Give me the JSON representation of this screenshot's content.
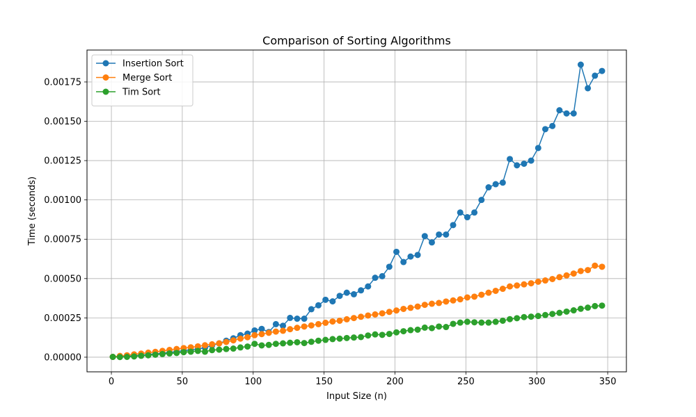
{
  "chart_data": {
    "type": "line",
    "title": "Comparison of Sorting Algorithms",
    "xlabel": "Input Size (n)",
    "ylabel": "Time (seconds)",
    "xlim": [
      -17.2,
      363.2
    ],
    "ylim": [
      -9.3e-05,
      0.001953
    ],
    "xticks": [
      0,
      50,
      100,
      150,
      200,
      250,
      300,
      350
    ],
    "xtick_labels": [
      "0",
      "50",
      "100",
      "150",
      "200",
      "250",
      "300",
      "350"
    ],
    "yticks": [
      0,
      0.00025,
      0.0005,
      0.00075,
      0.001,
      0.00125,
      0.0015,
      0.00175
    ],
    "ytick_labels": [
      "0.00000",
      "0.00025",
      "0.00050",
      "0.00075",
      "0.00100",
      "0.00125",
      "0.00150",
      "0.00175"
    ],
    "grid": true,
    "legend_position": "top-left",
    "x": [
      1,
      6,
      11,
      16,
      21,
      26,
      31,
      36,
      41,
      46,
      51,
      56,
      61,
      66,
      71,
      76,
      81,
      86,
      91,
      96,
      101,
      106,
      111,
      116,
      121,
      126,
      131,
      136,
      141,
      146,
      151,
      156,
      161,
      166,
      171,
      176,
      181,
      186,
      191,
      196,
      201,
      206,
      211,
      216,
      221,
      226,
      231,
      236,
      241,
      246,
      251,
      256,
      261,
      266,
      271,
      276,
      281,
      286,
      291,
      296,
      301,
      306,
      311,
      316,
      321,
      326,
      331,
      336,
      341,
      346
    ],
    "series": [
      {
        "name": "Insertion Sort",
        "color": "#1f77b4",
        "values": [
          2e-06,
          3e-06,
          6e-06,
          9e-06,
          1.3e-05,
          1.7e-05,
          2.1e-05,
          2.5e-05,
          3e-05,
          3.5e-05,
          4.1e-05,
          4.6e-05,
          5.3e-05,
          6e-05,
          7.5e-05,
          8.8e-05,
          0.000105,
          0.00012,
          0.00014,
          0.00015,
          0.00017,
          0.00018,
          0.00016,
          0.00021,
          0.0002,
          0.00025,
          0.000245,
          0.000245,
          0.000305,
          0.00033,
          0.000365,
          0.000355,
          0.00039,
          0.00041,
          0.0004,
          0.000425,
          0.00045,
          0.000505,
          0.000515,
          0.000575,
          0.00067,
          0.000605,
          0.00064,
          0.00065,
          0.00077,
          0.00073,
          0.00078,
          0.00078,
          0.00084,
          0.00092,
          0.00089,
          0.00092,
          0.001,
          0.00108,
          0.0011,
          0.00111,
          0.00126,
          0.00122,
          0.00123,
          0.00125,
          0.00133,
          0.00145,
          0.00147,
          0.00157,
          0.00155,
          0.00155,
          0.00186,
          0.00171,
          0.00179,
          0.00182
        ]
      },
      {
        "name": "Merge Sort",
        "color": "#ff7f0e",
        "values": [
          2e-06,
          8e-06,
          1.2e-05,
          1.8e-05,
          2.3e-05,
          2.9e-05,
          3.4e-05,
          4e-05,
          4.6e-05,
          5.2e-05,
          5.8e-05,
          6.3e-05,
          6.9e-05,
          7.6e-05,
          8.2e-05,
          8.8e-05,
          9.7e-05,
          0.000107,
          0.000118,
          0.000127,
          0.00014,
          0.000147,
          0.000155,
          0.000163,
          0.000168,
          0.000178,
          0.000187,
          0.000195,
          0.000202,
          0.00021,
          0.000219,
          0.000227,
          0.000232,
          0.000241,
          0.000249,
          0.000257,
          0.000265,
          0.000272,
          0.000279,
          0.000288,
          0.000297,
          0.000307,
          0.000314,
          0.000322,
          0.000333,
          0.00034,
          0.000345,
          0.000354,
          0.000361,
          0.000368,
          0.00038,
          0.000385,
          0.000397,
          0.00041,
          0.000422,
          0.000435,
          0.00045,
          0.000456,
          0.000463,
          0.00047,
          0.00048,
          0.000488,
          0.000497,
          0.000509,
          0.00052,
          0.000532,
          0.000548,
          0.000554,
          0.000582,
          0.000575
        ]
      },
      {
        "name": "Tim Sort",
        "color": "#2ca02c",
        "values": [
          2e-06,
          1e-06,
          2e-06,
          5e-06,
          9e-06,
          1.2e-05,
          1.6e-05,
          2e-05,
          2.4e-05,
          2.7e-05,
          3.2e-05,
          3.5e-05,
          4e-05,
          3.5e-05,
          4.5e-05,
          4.8e-05,
          5.2e-05,
          5.5e-05,
          6.2e-05,
          6.8e-05,
          8.5e-05,
          7.5e-05,
          7.8e-05,
          8.5e-05,
          8.8e-05,
          9.2e-05,
          9.5e-05,
          9e-05,
          9.8e-05,
          0.000105,
          0.00011,
          0.000115,
          0.000118,
          0.000122,
          0.000125,
          0.000128,
          0.000138,
          0.000145,
          0.000142,
          0.000148,
          0.000158,
          0.000165,
          0.000172,
          0.000175,
          0.000188,
          0.000185,
          0.000195,
          0.000192,
          0.000212,
          0.00022,
          0.000225,
          0.000222,
          0.00022,
          0.00022,
          0.000225,
          0.000232,
          0.000242,
          0.000248,
          0.000255,
          0.000258,
          0.000262,
          0.000268,
          0.000275,
          0.000282,
          0.00029,
          0.000298,
          0.000308,
          0.000315,
          0.000325,
          0.000328
        ]
      }
    ]
  }
}
